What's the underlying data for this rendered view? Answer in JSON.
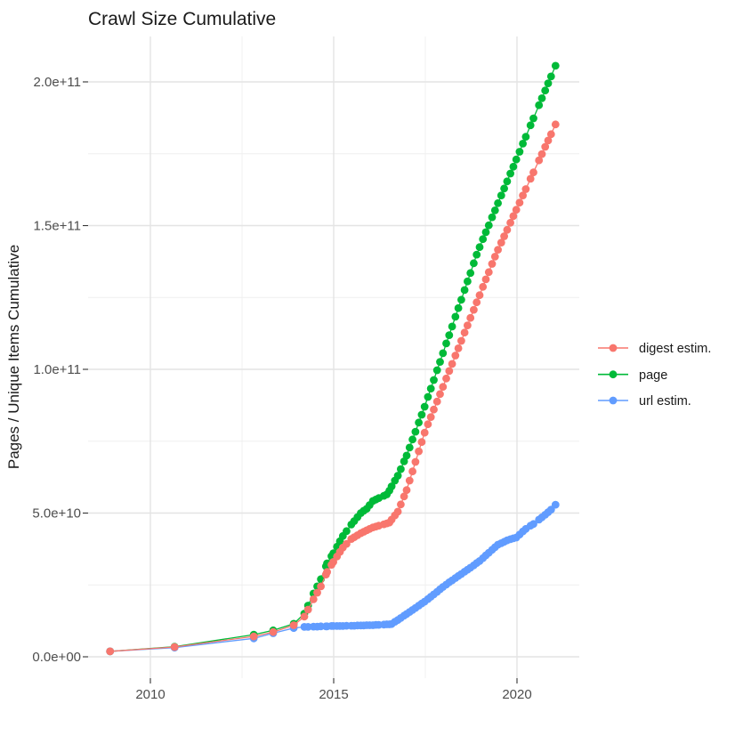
{
  "header": {
    "title": "Crawl Size Cumulative"
  },
  "axes": {
    "y_title": "Pages / Unique Items Cumulative",
    "x_tick_labels": [
      "2010",
      "2015",
      "2020"
    ],
    "y_tick_labels": [
      "0.0e+00",
      "5.0e+10",
      "1.0e+11",
      "1.5e+11",
      "2.0e+11"
    ]
  },
  "legend": {
    "position": "right",
    "items": [
      {
        "label": "digest estim.",
        "color": "#F8766D"
      },
      {
        "label": "page",
        "color": "#00BA38"
      },
      {
        "label": "url estim.",
        "color": "#619CFF"
      }
    ]
  },
  "colors": {
    "grid_major": "#E4E4E4",
    "grid_minor": "#EFEFEF",
    "tick_mark": "#333333",
    "axis_text": "#4D4D4D",
    "background": "#FFFFFF"
  },
  "chart_data": {
    "type": "line",
    "title": "Crawl Size Cumulative",
    "xlabel": "",
    "ylabel": "Pages / Unique Items Cumulative",
    "x_unit": "year",
    "xlim": [
      2008.3,
      2021.7
    ],
    "ylim": [
      0,
      216000000000.0
    ],
    "x_ticks": [
      2010,
      2015,
      2020
    ],
    "x_minor_ticks": [
      2012.5,
      2017.5
    ],
    "y_ticks": [
      0,
      50000000000.0,
      100000000000.0,
      150000000000.0,
      200000000000.0
    ],
    "y_minor_ticks": [
      25000000000.0,
      75000000000.0,
      125000000000.0,
      175000000000.0
    ],
    "y_tick_labels": [
      "0.0e+00",
      "5.0e+10",
      "1.0e+11",
      "1.5e+11",
      "2.0e+11"
    ],
    "grid": true,
    "legend_position": "right",
    "marker": "point",
    "x": [
      2008.9,
      2010.66,
      2012.82,
      2013.35,
      2013.91,
      2014.2,
      2014.3,
      2014.45,
      2014.55,
      2014.65,
      2014.79,
      2014.82,
      2014.94,
      2014.99,
      2015.09,
      2015.17,
      2015.25,
      2015.35,
      2015.48,
      2015.56,
      2015.65,
      2015.74,
      2015.82,
      2015.9,
      2015.98,
      2016.07,
      2016.15,
      2016.23,
      2016.37,
      2016.45,
      2016.52,
      2016.58,
      2016.67,
      2016.75,
      2016.83,
      2016.92,
      2016.99,
      2017.07,
      2017.15,
      2017.23,
      2017.32,
      2017.4,
      2017.48,
      2017.57,
      2017.65,
      2017.73,
      2017.82,
      2017.9,
      2017.98,
      2018.07,
      2018.15,
      2018.23,
      2018.32,
      2018.4,
      2018.48,
      2018.57,
      2018.65,
      2018.73,
      2018.82,
      2018.9,
      2018.98,
      2019.07,
      2019.15,
      2019.23,
      2019.32,
      2019.4,
      2019.48,
      2019.57,
      2019.65,
      2019.73,
      2019.82,
      2019.9,
      2019.98,
      2020.07,
      2020.16,
      2020.24,
      2020.37,
      2020.45,
      2020.6,
      2020.68,
      2020.77,
      2020.85,
      2020.93,
      2021.05
    ],
    "series": [
      {
        "name": "digest estim.",
        "color": "#F8766D",
        "values": [
          1900000000.0,
          3400000000.0,
          7100000000.0,
          8600000000.0,
          11000000000.0,
          14000000000.0,
          16400000000.0,
          20000000000.0,
          22300000000.0,
          24500000000.0,
          28600000000.0,
          29500000000.0,
          32000000000.0,
          33000000000.0,
          34900000000.0,
          36500000000.0,
          38000000000.0,
          39300000000.0,
          41000000000.0,
          41600000000.0,
          42300000000.0,
          43000000000.0,
          43500000000.0,
          44000000000.0,
          44500000000.0,
          45000000000.0,
          45300000000.0,
          45600000000.0,
          46100000000.0,
          46400000000.0,
          46700000000.0,
          47700000000.0,
          49200000000.0,
          50500000000.0,
          53000000000.0,
          55800000000.0,
          58000000000.0,
          61300000000.0,
          64500000000.0,
          67800000000.0,
          71500000000.0,
          74700000000.0,
          78000000000.0,
          80900000000.0,
          83400000000.0,
          86000000000.0,
          88800000000.0,
          91400000000.0,
          93900000000.0,
          96800000000.0,
          99400000000.0,
          101900000000.0,
          104800000000.0,
          107300000000.0,
          109900000000.0,
          112800000000.0,
          115300000000.0,
          117900000000.0,
          120700000000.0,
          123300000000.0,
          125800000000.0,
          128700000000.0,
          131300000000.0,
          133800000000.0,
          136700000000.0,
          139200000000.0,
          141600000000.0,
          144100000000.0,
          146300000000.0,
          148500000000.0,
          151000000000.0,
          153300000000.0,
          155500000000.0,
          158000000000.0,
          160500000000.0,
          162700000000.0,
          166300000000.0,
          168500000000.0,
          172700000000.0,
          174900000000.0,
          177400000000.0,
          179600000000.0,
          181800000000.0,
          185200000000.0
        ]
      },
      {
        "name": "page",
        "color": "#00BA38",
        "values": [
          1900000000.0,
          3500000000.0,
          7700000000.0,
          9200000000.0,
          11500000000.0,
          15000000000.0,
          17800000000.0,
          22000000000.0,
          24500000000.0,
          27000000000.0,
          31500000000.0,
          32500000000.0,
          35000000000.0,
          36000000000.0,
          38300000000.0,
          40200000000.0,
          42000000000.0,
          43700000000.0,
          46000000000.0,
          47200000000.0,
          48600000000.0,
          50000000000.0,
          50800000000.0,
          51500000000.0,
          52800000000.0,
          54200000000.0,
          54700000000.0,
          55200000000.0,
          56000000000.0,
          56500000000.0,
          57800000000.0,
          59300000000.0,
          61300000000.0,
          63000000000.0,
          65300000000.0,
          68000000000.0,
          70000000000.0,
          72800000000.0,
          75600000000.0,
          78300000000.0,
          81500000000.0,
          84200000000.0,
          87000000000.0,
          90400000000.0,
          93300000000.0,
          96300000000.0,
          99700000000.0,
          102600000000.0,
          105600000000.0,
          109000000000.0,
          111900000000.0,
          114900000000.0,
          118300000000.0,
          121300000000.0,
          124200000000.0,
          127600000000.0,
          130600000000.0,
          133500000000.0,
          136900000000.0,
          139900000000.0,
          142500000000.0,
          145300000000.0,
          147700000000.0,
          150100000000.0,
          152900000000.0,
          155300000000.0,
          157800000000.0,
          160500000000.0,
          162900000000.0,
          165400000000.0,
          168100000000.0,
          170500000000.0,
          173000000000.0,
          175700000000.0,
          178500000000.0,
          180900000000.0,
          184900000000.0,
          187300000000.0,
          191900000000.0,
          194300000000.0,
          197000000000.0,
          199500000000.0,
          201900000000.0,
          205600000000.0
        ]
      },
      {
        "name": "url estim.",
        "color": "#619CFF",
        "values": [
          1900000000.0,
          3200000000.0,
          6400000000.0,
          8200000000.0,
          10000000000.0,
          10400000000.0,
          10400000000.0,
          10500000000.0,
          10500000000.0,
          10600000000.0,
          10600000000.0,
          10600000000.0,
          10700000000.0,
          10700000000.0,
          10700000000.0,
          10700000000.0,
          10700000000.0,
          10800000000.0,
          10800000000.0,
          10800000000.0,
          10900000000.0,
          10900000000.0,
          10900000000.0,
          11000000000.0,
          11000000000.0,
          11000000000.0,
          11100000000.0,
          11100000000.0,
          11200000000.0,
          11300000000.0,
          11300000000.0,
          11400000000.0,
          12200000000.0,
          12800000000.0,
          13500000000.0,
          14300000000.0,
          14900000000.0,
          15600000000.0,
          16300000000.0,
          17000000000.0,
          17800000000.0,
          18500000000.0,
          19200000000.0,
          20100000000.0,
          20900000000.0,
          21700000000.0,
          22600000000.0,
          23500000000.0,
          24300000000.0,
          25100000000.0,
          25900000000.0,
          26600000000.0,
          27400000000.0,
          28100000000.0,
          28800000000.0,
          29600000000.0,
          30300000000.0,
          31000000000.0,
          31800000000.0,
          32600000000.0,
          33300000000.0,
          34300000000.0,
          35300000000.0,
          36200000000.0,
          37200000000.0,
          38100000000.0,
          39000000000.0,
          39500000000.0,
          40000000000.0,
          40500000000.0,
          40900000000.0,
          41200000000.0,
          41500000000.0,
          42500000000.0,
          43600000000.0,
          44500000000.0,
          45600000000.0,
          46200000000.0,
          47700000000.0,
          48500000000.0,
          49400000000.0,
          50300000000.0,
          51200000000.0,
          52900000000.0
        ]
      }
    ]
  }
}
